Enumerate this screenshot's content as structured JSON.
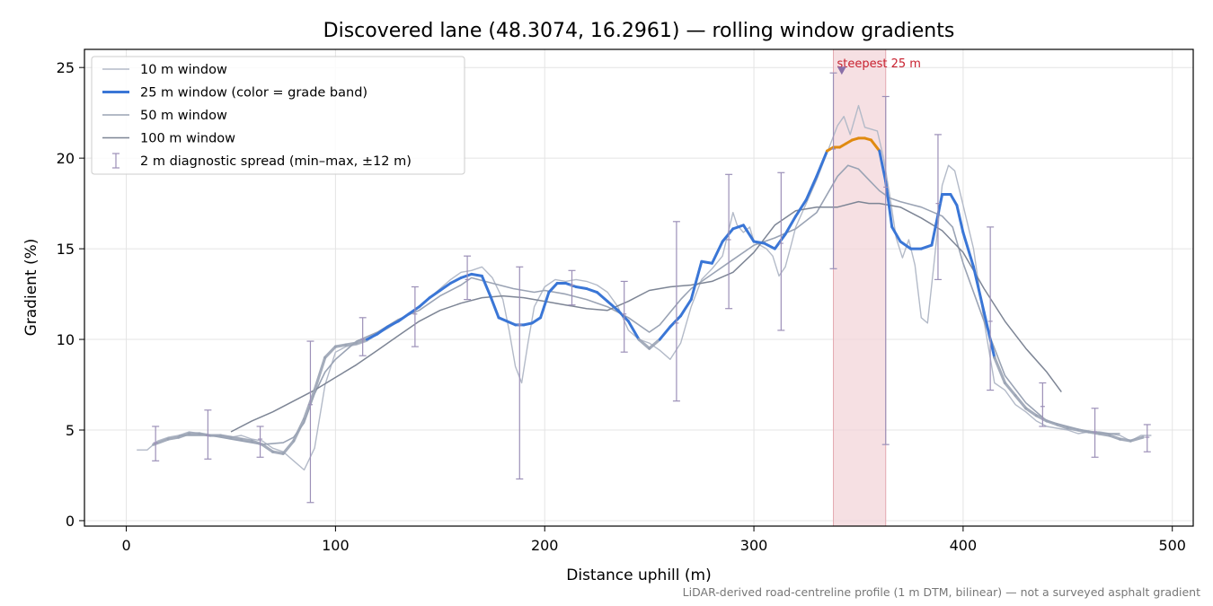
{
  "chart_data": {
    "type": "line",
    "title": "Discovered lane (48.3074, 16.2961) — rolling window gradients",
    "xlabel": "Distance uphill (m)",
    "ylabel": "Gradient (%)",
    "xlim": [
      -20,
      510
    ],
    "ylim": [
      -0.3,
      26
    ],
    "xticks": [
      0,
      100,
      200,
      300,
      400,
      500
    ],
    "yticks": [
      0,
      5,
      10,
      15,
      20,
      25
    ],
    "grid": true,
    "legend_position": "top-left",
    "footnote": "LiDAR-derived road-centreline profile (1 m DTM, bilinear) — not a surveyed asphalt gradient",
    "annotation": {
      "text": "steepest 25 m",
      "x_range": [
        338,
        363
      ],
      "marker_x": 342,
      "marker_y": 24.8
    },
    "colors": {
      "w10": "#b3bac8",
      "w25_blue": "#3a76d6",
      "w25_orange": "#e08a10",
      "w50": "#9aa3b4",
      "w100": "#7d8595",
      "spread": "#9c90b8",
      "highlight": "#f3d6d9",
      "annotation": "#c8212f"
    },
    "legend": [
      {
        "label": "10 m window",
        "key": "w10"
      },
      {
        "label": "25 m window (color = grade band)",
        "key": "w25"
      },
      {
        "label": "50 m window",
        "key": "w50"
      },
      {
        "label": "100 m window",
        "key": "w100"
      },
      {
        "label": "2 m diagnostic spread (min–max, ±12 m)",
        "key": "spread"
      }
    ],
    "series": [
      {
        "name": "10 m window",
        "x": [
          5,
          10,
          15,
          20,
          25,
          30,
          35,
          40,
          45,
          50,
          55,
          60,
          65,
          70,
          75,
          80,
          85,
          90,
          95,
          100,
          105,
          110,
          115,
          120,
          125,
          130,
          135,
          140,
          145,
          150,
          155,
          160,
          165,
          170,
          175,
          180,
          183,
          186,
          189,
          192,
          195,
          200,
          205,
          210,
          215,
          220,
          225,
          230,
          235,
          240,
          245,
          250,
          255,
          260,
          265,
          270,
          275,
          280,
          285,
          290,
          292,
          295,
          298,
          300,
          303,
          306,
          309,
          312,
          315,
          318,
          320,
          325,
          330,
          335,
          340,
          343,
          346,
          350,
          353,
          356,
          359,
          362,
          365,
          368,
          371,
          374,
          377,
          380,
          383,
          386,
          390,
          393,
          396,
          400,
          405,
          410,
          415,
          420,
          425,
          430,
          435,
          440,
          445,
          450,
          455,
          460,
          465,
          470,
          475,
          480,
          485,
          490
        ],
        "y": [
          3.9,
          3.9,
          4.4,
          4.6,
          4.7,
          4.9,
          4.8,
          4.7,
          4.7,
          4.6,
          4.7,
          4.5,
          4.4,
          4.0,
          3.8,
          3.3,
          2.8,
          4.0,
          7.5,
          9.3,
          9.6,
          9.7,
          9.9,
          10.3,
          10.6,
          11.0,
          11.4,
          11.8,
          12.3,
          12.8,
          13.3,
          13.7,
          13.8,
          14.0,
          13.4,
          12.2,
          10.5,
          8.5,
          7.6,
          9.8,
          11.8,
          12.9,
          13.3,
          13.2,
          13.3,
          13.2,
          13.0,
          12.6,
          11.8,
          10.5,
          10.0,
          9.8,
          9.4,
          8.9,
          9.8,
          11.8,
          13.3,
          13.9,
          14.6,
          17.0,
          16.3,
          15.9,
          16.2,
          15.4,
          15.2,
          15.0,
          14.6,
          13.5,
          14.0,
          15.3,
          16.2,
          17.5,
          18.8,
          20.3,
          21.8,
          22.3,
          21.3,
          22.9,
          21.7,
          21.6,
          21.5,
          20.0,
          17.9,
          15.6,
          14.5,
          15.5,
          14.1,
          11.2,
          10.9,
          14.1,
          18.5,
          19.6,
          19.3,
          17.4,
          15.0,
          11.0,
          7.6,
          7.2,
          6.4,
          6.0,
          5.5,
          5.2,
          5.1,
          5.0,
          4.8,
          4.9,
          4.9,
          4.8,
          4.7,
          4.4,
          4.7,
          4.7
        ]
      },
      {
        "name": "25 m window (color = grade band)",
        "x": [
          13,
          20,
          25,
          30,
          35,
          40,
          45,
          50,
          55,
          60,
          65,
          70,
          75,
          80,
          85,
          90,
          95,
          100,
          105,
          110,
          115,
          120,
          125,
          130,
          135,
          140,
          145,
          150,
          155,
          160,
          165,
          170,
          174,
          178,
          182,
          186,
          190,
          194,
          198,
          202,
          206,
          210,
          215,
          220,
          225,
          230,
          235,
          240,
          245,
          250,
          255,
          260,
          265,
          270,
          275,
          280,
          285,
          290,
          295,
          300,
          305,
          310,
          315,
          320,
          325,
          330,
          335,
          338,
          341,
          344,
          347,
          350,
          353,
          356,
          360,
          363,
          366,
          370,
          375,
          380,
          385,
          390,
          394,
          397,
          400,
          405,
          410,
          415,
          420,
          425,
          430,
          435,
          440,
          445,
          450,
          455,
          460,
          465,
          470,
          475,
          480,
          486
        ],
        "y": [
          4.2,
          4.5,
          4.6,
          4.8,
          4.8,
          4.7,
          4.7,
          4.6,
          4.5,
          4.4,
          4.2,
          3.8,
          3.7,
          4.4,
          5.6,
          7.2,
          9.0,
          9.6,
          9.7,
          9.8,
          10.0,
          10.3,
          10.7,
          11.0,
          11.4,
          11.8,
          12.3,
          12.7,
          13.1,
          13.4,
          13.6,
          13.5,
          12.4,
          11.2,
          11.0,
          10.8,
          10.8,
          10.9,
          11.2,
          12.6,
          13.1,
          13.1,
          12.9,
          12.8,
          12.6,
          12.1,
          11.6,
          11.0,
          10.0,
          9.5,
          10.0,
          10.7,
          11.3,
          12.2,
          14.3,
          14.2,
          15.4,
          16.1,
          16.3,
          15.4,
          15.3,
          15.0,
          15.8,
          16.8,
          17.7,
          19.0,
          20.4,
          20.6,
          20.6,
          20.8,
          21.0,
          21.1,
          21.1,
          21.0,
          20.4,
          18.7,
          16.2,
          15.4,
          15.0,
          15.0,
          15.2,
          18.0,
          18.0,
          17.4,
          15.9,
          14.0,
          11.5,
          9.0,
          7.6,
          6.9,
          6.2,
          5.8,
          5.5,
          5.3,
          5.1,
          5.0,
          4.9,
          4.8,
          4.7,
          4.5,
          4.4,
          4.6
        ]
      },
      {
        "name": "50 m window",
        "x": [
          25,
          40,
          55,
          65,
          75,
          80,
          85,
          90,
          95,
          100,
          110,
          120,
          130,
          140,
          150,
          160,
          165,
          175,
          185,
          195,
          200,
          210,
          220,
          230,
          240,
          250,
          255,
          260,
          265,
          270,
          280,
          290,
          300,
          310,
          320,
          330,
          340,
          345,
          350,
          355,
          360,
          365,
          370,
          380,
          390,
          395,
          400,
          410,
          420,
          430,
          440,
          450,
          460,
          470,
          475
        ],
        "y": [
          4.7,
          4.7,
          4.4,
          4.2,
          4.3,
          4.6,
          5.4,
          7.0,
          8.2,
          8.9,
          9.9,
          10.4,
          11.1,
          11.6,
          12.4,
          13.0,
          13.4,
          13.1,
          12.8,
          12.6,
          12.7,
          12.5,
          12.2,
          11.8,
          11.2,
          10.4,
          10.8,
          11.5,
          12.2,
          12.8,
          13.6,
          14.4,
          15.2,
          15.6,
          16.1,
          17.0,
          19.0,
          19.6,
          19.4,
          18.8,
          18.2,
          17.8,
          17.6,
          17.3,
          16.8,
          16.2,
          14.2,
          11.0,
          8.0,
          6.5,
          5.5,
          5.2,
          4.9,
          4.8,
          4.8
        ]
      },
      {
        "name": "100 m window",
        "x": [
          50,
          60,
          70,
          80,
          90,
          100,
          110,
          120,
          130,
          140,
          150,
          160,
          170,
          180,
          190,
          200,
          210,
          220,
          230,
          240,
          250,
          260,
          270,
          280,
          290,
          300,
          310,
          320,
          330,
          340,
          350,
          355,
          360,
          370,
          380,
          390,
          400,
          410,
          420,
          430,
          440,
          447
        ],
        "y": [
          4.9,
          5.5,
          6.0,
          6.6,
          7.2,
          7.9,
          8.6,
          9.4,
          10.2,
          11.0,
          11.6,
          12.0,
          12.3,
          12.4,
          12.3,
          12.1,
          11.9,
          11.7,
          11.6,
          12.1,
          12.7,
          12.9,
          13.0,
          13.2,
          13.7,
          14.8,
          16.3,
          17.1,
          17.3,
          17.3,
          17.6,
          17.5,
          17.5,
          17.3,
          16.7,
          16.0,
          14.8,
          12.8,
          11.0,
          9.5,
          8.2,
          7.1
        ]
      }
    ],
    "spread": [
      {
        "x": 14,
        "min": 3.3,
        "max": 5.2,
        "mid": 4.3
      },
      {
        "x": 39,
        "min": 3.4,
        "max": 6.1,
        "mid": 4.7
      },
      {
        "x": 64,
        "min": 3.5,
        "max": 5.2,
        "mid": 4.5
      },
      {
        "x": 88,
        "min": 1.0,
        "max": 9.9,
        "mid": 6.4
      },
      {
        "x": 113,
        "min": 9.1,
        "max": 11.2,
        "mid": 10.0
      },
      {
        "x": 138,
        "min": 9.6,
        "max": 12.9,
        "mid": 11.4
      },
      {
        "x": 163,
        "min": 12.2,
        "max": 14.6,
        "mid": 13.3
      },
      {
        "x": 188,
        "min": 2.3,
        "max": 14.0,
        "mid": 10.8
      },
      {
        "x": 213,
        "min": 11.9,
        "max": 13.8,
        "mid": 13.0
      },
      {
        "x": 238,
        "min": 9.3,
        "max": 13.2,
        "mid": 11.4
      },
      {
        "x": 263,
        "min": 6.6,
        "max": 16.5,
        "mid": 10.9
      },
      {
        "x": 288,
        "min": 11.7,
        "max": 19.1,
        "mid": 15.5
      },
      {
        "x": 313,
        "min": 10.5,
        "max": 19.2,
        "mid": 15.3
      },
      {
        "x": 338,
        "min": 13.9,
        "max": 24.7,
        "mid": 20.5
      },
      {
        "x": 363,
        "min": 4.2,
        "max": 23.4,
        "mid": 18.4
      },
      {
        "x": 388,
        "min": 13.3,
        "max": 21.3,
        "mid": 17.5
      },
      {
        "x": 413,
        "min": 7.2,
        "max": 16.2,
        "mid": 11.0
      },
      {
        "x": 438,
        "min": 5.2,
        "max": 7.6,
        "mid": 6.3
      },
      {
        "x": 463,
        "min": 3.5,
        "max": 6.2,
        "mid": 4.9
      },
      {
        "x": 488,
        "min": 3.8,
        "max": 5.3,
        "mid": 4.6
      }
    ]
  }
}
